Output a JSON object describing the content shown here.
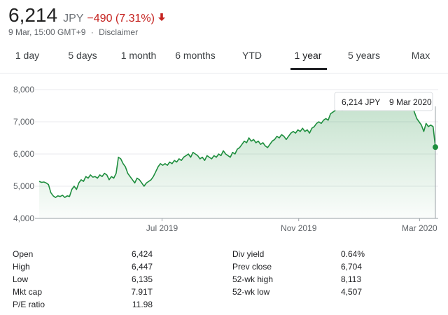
{
  "quote": {
    "price": "6,214",
    "currency": "JPY",
    "change": "−490 (7.31%)",
    "arrow_icon": "arrow-down-icon",
    "date": "9 Mar, 15:00 GMT+9",
    "separator": "·",
    "disclaimer": "Disclaimer"
  },
  "colors": {
    "line": "#1e8e3e",
    "negative": "#c5221f"
  },
  "tabs": [
    {
      "label": "1 day"
    },
    {
      "label": "5 days"
    },
    {
      "label": "1 month"
    },
    {
      "label": "6 months"
    },
    {
      "label": "YTD"
    },
    {
      "label": "1 year",
      "active": true
    },
    {
      "label": "5 years"
    },
    {
      "label": "Max"
    }
  ],
  "tooltip": {
    "price": "6,214 JPY",
    "date": "9 Mar 2020"
  },
  "chart_data": {
    "type": "area",
    "x_ticks": [
      "Jul 2019",
      "Nov 2019",
      "Mar 2020"
    ],
    "y_ticks": [
      "8,000",
      "7,000",
      "6,000",
      "5,000",
      "4,000"
    ],
    "ylim": [
      4000,
      8000
    ],
    "grid": true,
    "series": [
      {
        "values": [
          5150,
          5120,
          5130,
          5100,
          5050,
          4800,
          4700,
          4650,
          4700,
          4680,
          4720,
          4650,
          4700,
          4680,
          4900,
          5000,
          4900,
          5100,
          5200,
          5150,
          5300,
          5250,
          5350,
          5280,
          5300,
          5250,
          5350,
          5300,
          5400,
          5350,
          5200,
          5300,
          5250,
          5400,
          5900,
          5850,
          5700,
          5600,
          5400,
          5300,
          5200,
          5100,
          5250,
          5200,
          5100,
          5000,
          5100,
          5150,
          5200,
          5300,
          5450,
          5600,
          5700,
          5650,
          5700,
          5650,
          5750,
          5700,
          5800,
          5750,
          5850,
          5800,
          5900,
          5950,
          6000,
          5900,
          6050,
          6000,
          5950,
          5850,
          5900,
          5800,
          5950,
          5900,
          5850,
          5950,
          5900,
          6000,
          5950,
          6100,
          6000,
          5950,
          5900,
          6050,
          6000,
          6150,
          6200,
          6300,
          6400,
          6350,
          6500,
          6400,
          6450,
          6350,
          6400,
          6300,
          6350,
          6250,
          6200,
          6300,
          6400,
          6450,
          6550,
          6500,
          6600,
          6550,
          6450,
          6550,
          6650,
          6700,
          6650,
          6750,
          6700,
          6800,
          6700,
          6750,
          6650,
          6800,
          6850,
          6950,
          7000,
          6950,
          7050,
          7100,
          7050,
          7250,
          7300,
          7350,
          7400,
          7450,
          7350,
          7400,
          7450,
          7400,
          7500,
          7450,
          7600,
          7700,
          7750,
          7700,
          7800,
          7750,
          7700,
          7750,
          7800,
          7700,
          7800,
          7850,
          7900,
          7850,
          7900,
          7850,
          7800,
          7850,
          7900,
          7850,
          7700,
          7750,
          7700,
          7600,
          7500,
          7300,
          7100,
          7000,
          6900,
          6700,
          6950,
          6850,
          6900,
          6850,
          6214
        ]
      }
    ],
    "last_value": 6214
  },
  "stats": {
    "left": [
      {
        "label": "Open",
        "value": "6,424"
      },
      {
        "label": "High",
        "value": "6,447"
      },
      {
        "label": "Low",
        "value": "6,135"
      },
      {
        "label": "Mkt cap",
        "value": "7.91T"
      },
      {
        "label": "P/E ratio",
        "value": "11.98"
      }
    ],
    "right": [
      {
        "label": "Div yield",
        "value": "0.64%"
      },
      {
        "label": "Prev close",
        "value": "6,704"
      },
      {
        "label": "52-wk high",
        "value": "8,113"
      },
      {
        "label": "52-wk low",
        "value": "4,507"
      }
    ]
  }
}
